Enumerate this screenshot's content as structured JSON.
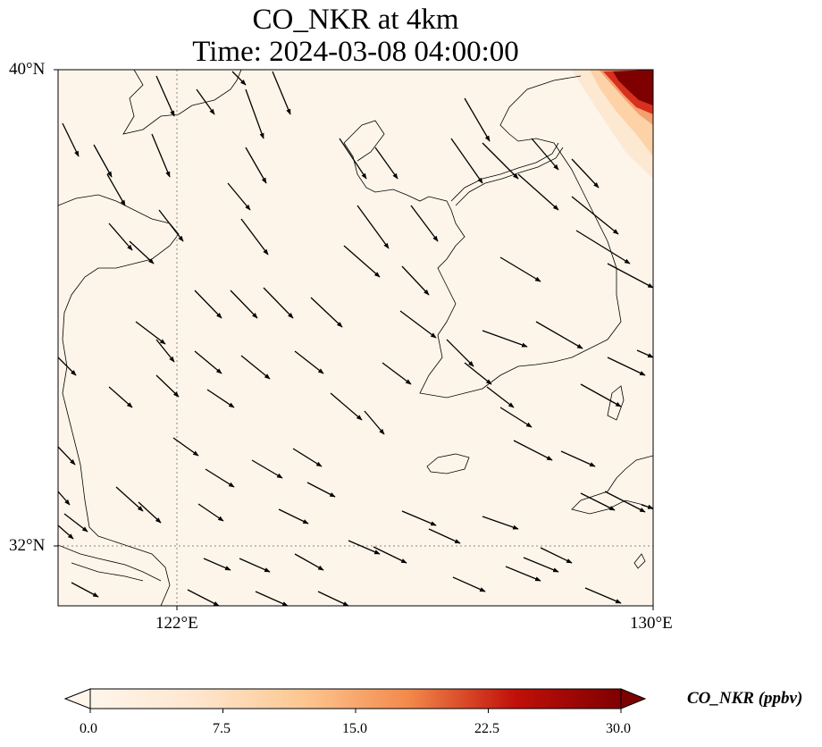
{
  "title": {
    "line1": "CO_NKR at 4km",
    "line2": "Time: 2024-03-08 04:00:00"
  },
  "map": {
    "extent": {
      "lon_min": 120,
      "lon_max": 130,
      "lat_min": 31,
      "lat_max": 40
    },
    "background_color": "#fdf5ea",
    "coastline_color": "#000000",
    "gridline_color": "#888888",
    "lat_ticks": [
      {
        "lat": 40,
        "label": "40°N"
      },
      {
        "lat": 32,
        "label": "32°N"
      }
    ],
    "lon_ticks": [
      {
        "lon": 122,
        "label": "122°E"
      },
      {
        "lon": 130,
        "label": "130°E"
      }
    ],
    "gridlines": {
      "lat": [
        32
      ],
      "lon": [
        122
      ]
    }
  },
  "colorbar": {
    "label": "CO_NKR (ppbv)",
    "min": 0.0,
    "max": 30.0,
    "ticks": [
      "0.0",
      "7.5",
      "15.0",
      "22.5",
      "30.0"
    ],
    "colors": [
      "#fff5eb",
      "#fdd9b4",
      "#fda762",
      "#e95d3c",
      "#b30000",
      "#7f0000"
    ],
    "extend": "both"
  },
  "wind": {
    "u_component_sign": "east",
    "v_component_sign": "south",
    "arrow_color": "#000000"
  }
}
